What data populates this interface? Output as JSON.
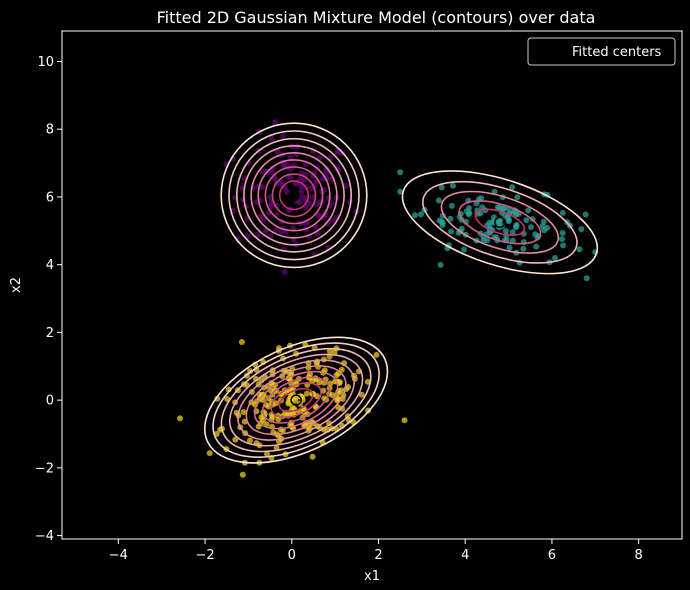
{
  "chart_data": {
    "type": "scatter",
    "title": "Fitted 2D Gaussian Mixture Model (contours) over data",
    "xlabel": "x1",
    "ylabel": "x2",
    "xlim": [
      -5.3,
      9.0
    ],
    "ylim": [
      -4.1,
      10.9
    ],
    "x_ticks": [
      -4,
      -2,
      0,
      2,
      4,
      6,
      8
    ],
    "y_ticks": [
      -4,
      -2,
      0,
      2,
      4,
      6,
      8,
      10
    ],
    "grid": false,
    "legend": {
      "position": "top-right",
      "entries": [
        "Fitted centers"
      ]
    },
    "colors": {
      "background": "#000000",
      "axes_edge": "#ffffff",
      "cluster_purple": "#5a0a6e",
      "cluster_teal": "#2aa198",
      "cluster_yellow": "#e8c81e",
      "contour_inner": "#c72e6a",
      "contour_outer": "#ffe4d4"
    },
    "clusters": [
      {
        "color": "#5a0a6e",
        "center": [
          0.05,
          6.05
        ],
        "rx": 1.5,
        "ry": 1.9,
        "angle": 0,
        "count": 140,
        "x_spread": [
          -2.3,
          2.1
        ],
        "y_spread": [
          3.2,
          8.9
        ],
        "contour_levels": [
          0.22,
          0.33,
          0.44,
          0.55,
          0.66,
          0.77,
          0.88,
          1.0,
          1.12
        ],
        "fitted_center": [
          0.05,
          6.05
        ]
      },
      {
        "color": "#2aa198",
        "center": [
          4.8,
          5.25
        ],
        "rx": 1.95,
        "ry": 1.05,
        "angle": -18,
        "count": 130,
        "x_spread": [
          2.5,
          7.0
        ],
        "y_spread": [
          2.4,
          7.0
        ],
        "contour_levels": [
          0.3,
          0.5,
          0.72,
          0.95,
          1.2
        ],
        "fitted_center": [
          4.8,
          5.25
        ]
      },
      {
        "color": "#e8c81e",
        "center": [
          0.1,
          0.0
        ],
        "rx": 2.05,
        "ry": 1.4,
        "angle": 25,
        "count": 240,
        "x_spread": [
          -3.3,
          2.6
        ],
        "y_spread": [
          -2.2,
          3.0
        ],
        "contour_levels": [
          0.2,
          0.3,
          0.4,
          0.5,
          0.6,
          0.7,
          0.8,
          0.9,
          1.0,
          1.1
        ],
        "fitted_center": [
          0.1,
          0.0
        ]
      }
    ]
  }
}
